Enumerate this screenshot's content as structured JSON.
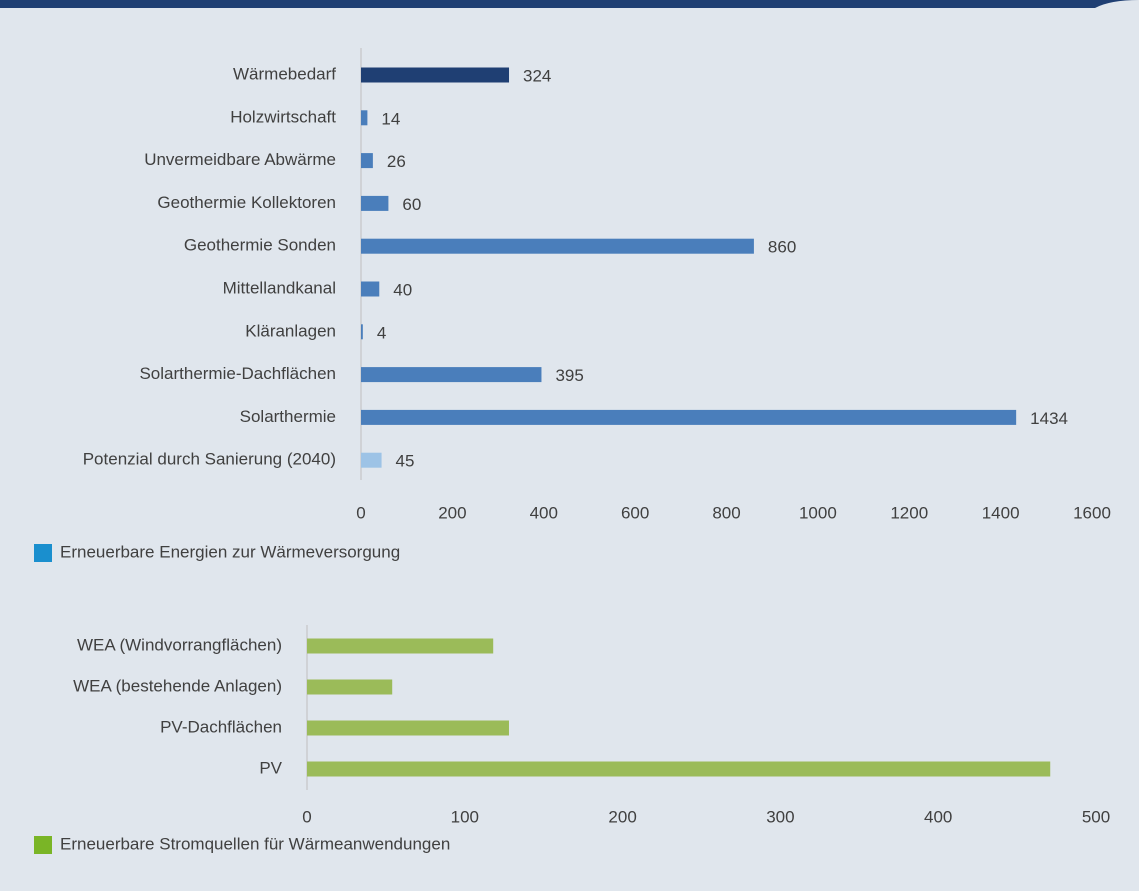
{
  "chart_data": [
    {
      "type": "hbar",
      "categories": [
        "Wärmebedarf",
        "Holzwirtschaft",
        "Unvermeidbare Abwärme",
        "Geothermie Kollektoren",
        "Geothermie Sonden",
        "Mittellandkanal",
        "Kläranlagen",
        "Solarthermie-Dachflächen",
        "Solarthermie",
        "Potenzial durch Sanierung (2040)"
      ],
      "values": [
        324,
        14,
        26,
        60,
        860,
        40,
        4,
        395,
        1434,
        45
      ],
      "colors": [
        "#1f3f73",
        "#4a7ebb",
        "#4a7ebb",
        "#4a7ebb",
        "#4a7ebb",
        "#4a7ebb",
        "#4a7ebb",
        "#4a7ebb",
        "#4a7ebb",
        "#9dc3e6"
      ],
      "value_labels_shown": true,
      "xlim": [
        0,
        1600
      ],
      "xticks": [
        0,
        200,
        400,
        600,
        800,
        1000,
        1200,
        1400,
        1600
      ],
      "legend": {
        "label": "Erneuerbare Energien zur Wärmeversorgung",
        "color": "#1a8fce"
      }
    },
    {
      "type": "hbar",
      "categories": [
        "WEA (Windvorrangflächen)",
        "WEA (bestehende Anlagen)",
        "PV-Dachflächen",
        "PV"
      ],
      "values": [
        118,
        54,
        128,
        471
      ],
      "colors": [
        "#9bbb59",
        "#9bbb59",
        "#9bbb59",
        "#9bbb59"
      ],
      "value_labels_shown": false,
      "xlim": [
        0,
        500
      ],
      "xticks": [
        0,
        100,
        200,
        300,
        400,
        500
      ],
      "legend": {
        "label": "Erneuerbare Stromquellen für Wärmeanwendungen",
        "color": "#7ab526"
      }
    }
  ]
}
